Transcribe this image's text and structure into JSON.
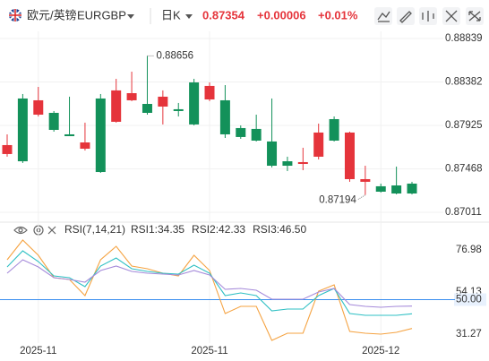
{
  "header": {
    "name": "欧元/英镑",
    "symbol": "EURGBP",
    "period": "日K",
    "price": 0.87354,
    "change": "+0.00006",
    "change_pct": "+0.01%"
  },
  "chart_data": [
    {
      "type": "candlestick",
      "categories": [
        null,
        null,
        "2025-11",
        null,
        null,
        null,
        null,
        null,
        null,
        null,
        null,
        null,
        null,
        "2025-11",
        null,
        null,
        null,
        null,
        null,
        null,
        null,
        null,
        null,
        null,
        "2025-12",
        null,
        null
      ],
      "open": [
        0.87624,
        0.88208,
        0.88038,
        0.88057,
        0.87831,
        0.8768,
        0.88208,
        0.87963,
        0.88189,
        0.88151,
        0.88123,
        0.88095,
        0.88377,
        0.88198,
        0.88189,
        0.87897,
        0.87888,
        0.87756,
        0.87548,
        0.8752,
        0.87596,
        0.87991,
        0.8736,
        0.87332,
        0.87285,
        0.87294,
        0.87313
      ],
      "high": [
        0.87831,
        0.88255,
        0.8833,
        0.88076,
        0.88227,
        0.87954,
        0.88255,
        0.88415,
        0.8849,
        0.88656,
        0.88293,
        0.88161,
        0.88415,
        0.88377,
        0.88349,
        0.87925,
        0.88038,
        0.88208,
        0.87596,
        0.8769,
        0.87944,
        0.88019,
        0.87859,
        0.87501,
        0.87313,
        0.87492,
        0.87332
      ],
      "low": [
        0.87596,
        0.8753,
        0.88019,
        0.87859,
        0.87812,
        0.87661,
        0.87426,
        0.87954,
        0.8818,
        0.88038,
        0.87935,
        0.88019,
        0.87925,
        0.8818,
        0.87793,
        0.87784,
        0.87756,
        0.87483,
        0.87445,
        0.87454,
        0.87567,
        0.87756,
        0.87332,
        0.87194,
        0.87219,
        0.872,
        0.87199
      ],
      "close": [
        0.87718,
        0.87548,
        0.88189,
        0.87878,
        0.87812,
        0.87746,
        0.87435,
        0.88293,
        0.88264,
        0.88057,
        0.88227,
        0.88076,
        0.87935,
        0.8834,
        0.87831,
        0.87803,
        0.87765,
        0.87501,
        0.87501,
        0.87539,
        0.8785,
        0.87765,
        0.8785,
        0.8736,
        0.87228,
        0.87209,
        0.87209
      ],
      "up_color": "#e5343b",
      "down_color": "#13915a",
      "ylim": [
        0.86936,
        0.88914
      ],
      "yticks": [
        0.88839,
        0.88382,
        0.87925,
        0.87468,
        0.87011
      ],
      "grid": true
    },
    {
      "type": "line",
      "title": "RSI(7,14,21)",
      "series": [
        {
          "name": "RSI1:34.35",
          "color": "#f5a342",
          "values": [
            71.64,
            82.34,
            74.07,
            61.91,
            60.94,
            52.19,
            71.64,
            78.94,
            68.24,
            66.78,
            64.35,
            62.89,
            74.07,
            65.8,
            42.46,
            46.35,
            46.35,
            27.87,
            31.76,
            31.76,
            54.62,
            58.02,
            32.73,
            31.76,
            31.27,
            32.24,
            34.35
          ]
        },
        {
          "name": "RSI2:42.33",
          "color": "#2fc0c4",
          "values": [
            67.75,
            76.51,
            70.67,
            62.89,
            61.91,
            57.05,
            68.24,
            72.61,
            66.78,
            65.32,
            64.35,
            63.86,
            68.72,
            64.35,
            52.19,
            53.64,
            52.19,
            43.92,
            44.89,
            44.89,
            52.19,
            56.08,
            42.46,
            41.48,
            41.48,
            41.48,
            42.33
          ]
        },
        {
          "name": "RSI3:46.50",
          "color": "#a58ada",
          "values": [
            64.35,
            71.64,
            67.75,
            61.91,
            60.94,
            59.48,
            65.8,
            68.24,
            65.32,
            64.35,
            63.86,
            63.37,
            65.8,
            63.37,
            55.59,
            56.08,
            55.1,
            50.24,
            50.24,
            50.24,
            54.13,
            56.08,
            47.32,
            46.35,
            45.86,
            46.35,
            46.5
          ]
        }
      ],
      "ylim": [
        26.41,
        85.25
      ],
      "yticks": [
        76.98,
        54.13,
        {
          "value": 50,
          "label": "50.00"
        },
        31.27
      ],
      "reference_line": {
        "value": 50,
        "color": "#3b8ff0"
      }
    }
  ]
}
